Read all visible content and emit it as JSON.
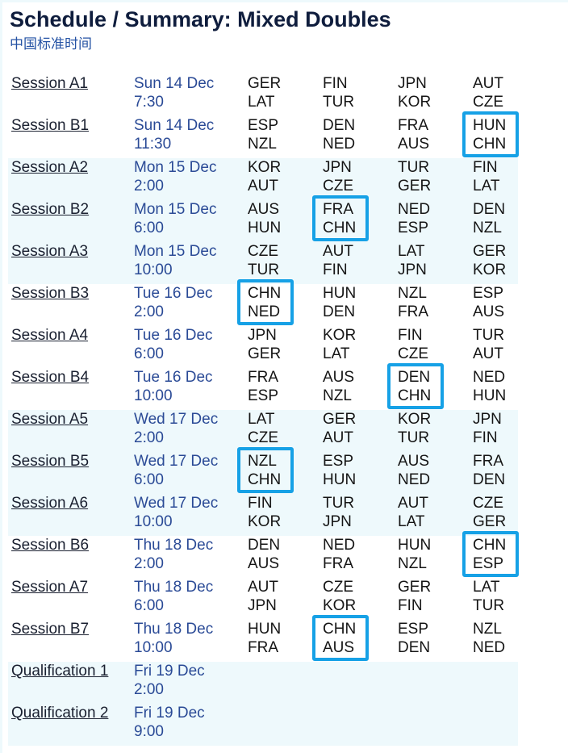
{
  "page": {
    "title": "Schedule / Summary: Mixed Doubles",
    "timezone": "中国标准时间"
  },
  "colors": {
    "title": "#0f1d3d",
    "timezone": "#2452a4",
    "session_link": "#1a2030",
    "date": "#2a4a96",
    "team": "#151515",
    "row_band": "#eef9fc",
    "highlight": "#16a1e6"
  },
  "sessions": [
    {
      "name": "Session A1",
      "day": "Sun 14 Dec",
      "time": "7:30",
      "matches": [
        {
          "team1": "GER",
          "team2": "LAT"
        },
        {
          "team1": "FIN",
          "team2": "TUR"
        },
        {
          "team1": "JPN",
          "team2": "KOR"
        },
        {
          "team1": "AUT",
          "team2": "CZE"
        }
      ]
    },
    {
      "name": "Session B1",
      "day": "Sun 14 Dec",
      "time": "11:30",
      "matches": [
        {
          "team1": "ESP",
          "team2": "NZL"
        },
        {
          "team1": "DEN",
          "team2": "NED"
        },
        {
          "team1": "FRA",
          "team2": "AUS"
        },
        {
          "team1": "HUN",
          "team2": "CHN",
          "highlight": true
        }
      ]
    },
    {
      "name": "Session A2",
      "day": "Mon 15 Dec",
      "time": "2:00",
      "matches": [
        {
          "team1": "KOR",
          "team2": "AUT"
        },
        {
          "team1": "JPN",
          "team2": "CZE"
        },
        {
          "team1": "TUR",
          "team2": "GER"
        },
        {
          "team1": "FIN",
          "team2": "LAT"
        }
      ]
    },
    {
      "name": "Session B2",
      "day": "Mon 15 Dec",
      "time": "6:00",
      "matches": [
        {
          "team1": "AUS",
          "team2": "HUN"
        },
        {
          "team1": "FRA",
          "team2": "CHN",
          "highlight": true
        },
        {
          "team1": "NED",
          "team2": "ESP"
        },
        {
          "team1": "DEN",
          "team2": "NZL"
        }
      ]
    },
    {
      "name": "Session A3",
      "day": "Mon 15 Dec",
      "time": "10:00",
      "matches": [
        {
          "team1": "CZE",
          "team2": "TUR"
        },
        {
          "team1": "AUT",
          "team2": "FIN"
        },
        {
          "team1": "LAT",
          "team2": "JPN"
        },
        {
          "team1": "GER",
          "team2": "KOR"
        }
      ]
    },
    {
      "name": "Session B3",
      "day": "Tue 16 Dec",
      "time": "2:00",
      "matches": [
        {
          "team1": "CHN",
          "team2": "NED",
          "highlight": true
        },
        {
          "team1": "HUN",
          "team2": "DEN"
        },
        {
          "team1": "NZL",
          "team2": "FRA"
        },
        {
          "team1": "ESP",
          "team2": "AUS"
        }
      ]
    },
    {
      "name": "Session A4",
      "day": "Tue 16 Dec",
      "time": "6:00",
      "matches": [
        {
          "team1": "JPN",
          "team2": "GER"
        },
        {
          "team1": "KOR",
          "team2": "LAT"
        },
        {
          "team1": "FIN",
          "team2": "CZE"
        },
        {
          "team1": "TUR",
          "team2": "AUT"
        }
      ]
    },
    {
      "name": "Session B4",
      "day": "Tue 16 Dec",
      "time": "10:00",
      "matches": [
        {
          "team1": "FRA",
          "team2": "ESP"
        },
        {
          "team1": "AUS",
          "team2": "NZL"
        },
        {
          "team1": "DEN",
          "team2": "CHN",
          "highlight": true
        },
        {
          "team1": "NED",
          "team2": "HUN"
        }
      ]
    },
    {
      "name": "Session A5",
      "day": "Wed 17 Dec",
      "time": "2:00",
      "matches": [
        {
          "team1": "LAT",
          "team2": "CZE"
        },
        {
          "team1": "GER",
          "team2": "AUT"
        },
        {
          "team1": "KOR",
          "team2": "TUR"
        },
        {
          "team1": "JPN",
          "team2": "FIN"
        }
      ]
    },
    {
      "name": "Session B5",
      "day": "Wed 17 Dec",
      "time": "6:00",
      "matches": [
        {
          "team1": "NZL",
          "team2": "CHN",
          "highlight": true
        },
        {
          "team1": "ESP",
          "team2": "HUN"
        },
        {
          "team1": "AUS",
          "team2": "NED"
        },
        {
          "team1": "FRA",
          "team2": "DEN"
        }
      ]
    },
    {
      "name": "Session A6",
      "day": "Wed 17 Dec",
      "time": "10:00",
      "matches": [
        {
          "team1": "FIN",
          "team2": "KOR"
        },
        {
          "team1": "TUR",
          "team2": "JPN"
        },
        {
          "team1": "AUT",
          "team2": "LAT"
        },
        {
          "team1": "CZE",
          "team2": "GER"
        }
      ]
    },
    {
      "name": "Session B6",
      "day": "Thu 18 Dec",
      "time": "2:00",
      "matches": [
        {
          "team1": "DEN",
          "team2": "AUS"
        },
        {
          "team1": "NED",
          "team2": "FRA"
        },
        {
          "team1": "HUN",
          "team2": "NZL"
        },
        {
          "team1": "CHN",
          "team2": "ESP",
          "highlight": true
        }
      ]
    },
    {
      "name": "Session A7",
      "day": "Thu 18 Dec",
      "time": "6:00",
      "matches": [
        {
          "team1": "AUT",
          "team2": "JPN"
        },
        {
          "team1": "CZE",
          "team2": "KOR"
        },
        {
          "team1": "GER",
          "team2": "FIN"
        },
        {
          "team1": "LAT",
          "team2": "TUR"
        }
      ]
    },
    {
      "name": "Session B7",
      "day": "Thu 18 Dec",
      "time": "10:00",
      "matches": [
        {
          "team1": "HUN",
          "team2": "FRA"
        },
        {
          "team1": "CHN",
          "team2": "AUS",
          "highlight": true
        },
        {
          "team1": "ESP",
          "team2": "DEN"
        },
        {
          "team1": "NZL",
          "team2": "NED"
        }
      ]
    },
    {
      "name": "Qualification 1",
      "day": "Fri 19 Dec",
      "time": "2:00",
      "matches": []
    },
    {
      "name": "Qualification 2",
      "day": "Fri 19 Dec",
      "time": "9:00",
      "matches": []
    }
  ]
}
